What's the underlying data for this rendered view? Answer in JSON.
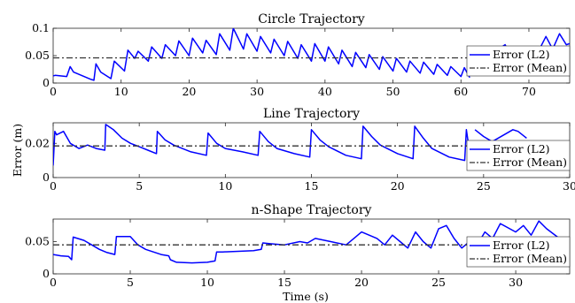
{
  "figure": {
    "ylabel": "Error (m)",
    "xlabel": "Time (s)"
  },
  "chart_data": [
    {
      "type": "line",
      "title": "Circle Trajectory",
      "xlim": [
        0,
        76
      ],
      "ylim": [
        0,
        0.1
      ],
      "xticks": [
        "0",
        "10",
        "20",
        "30",
        "40",
        "50",
        "60",
        "70"
      ],
      "yticks": [
        "0",
        "0.05",
        "0.1"
      ],
      "legend": {
        "position": "right",
        "entries": [
          "Error (L2)",
          "Error (Mean)"
        ]
      },
      "mean": 0.046,
      "series": [
        {
          "name": "Error (L2)",
          "color": "#0000ff",
          "x": [
            0,
            0.3,
            2,
            2.5,
            3,
            5.5,
            6,
            6.3,
            7,
            8.5,
            9,
            10.5,
            11,
            12,
            12.5,
            14,
            14.5,
            16,
            16.5,
            18,
            18.5,
            20,
            20.5,
            22,
            22.5,
            24,
            24.5,
            26,
            26.5,
            28,
            28.5,
            30,
            30.5,
            32,
            32.5,
            34,
            34.5,
            36,
            36.5,
            38,
            38.5,
            40,
            40.5,
            42,
            42.5,
            44,
            44.5,
            46,
            46.5,
            48,
            48.5,
            50,
            50.5,
            52,
            52.5,
            54,
            54.5,
            56,
            56.5,
            58,
            58.5,
            60,
            60.5,
            61.3
          ],
          "y": [
            0.013,
            0.014,
            0.012,
            0.03,
            0.02,
            0.007,
            0.005,
            0.035,
            0.02,
            0.008,
            0.04,
            0.022,
            0.06,
            0.045,
            0.058,
            0.04,
            0.066,
            0.045,
            0.07,
            0.05,
            0.077,
            0.05,
            0.082,
            0.055,
            0.078,
            0.052,
            0.09,
            0.06,
            0.1,
            0.062,
            0.09,
            0.058,
            0.085,
            0.055,
            0.08,
            0.05,
            0.076,
            0.045,
            0.07,
            0.04,
            0.072,
            0.04,
            0.066,
            0.035,
            0.06,
            0.03,
            0.056,
            0.028,
            0.052,
            0.025,
            0.048,
            0.022,
            0.045,
            0.02,
            0.04,
            0.018,
            0.038,
            0.016,
            0.034,
            0.014,
            0.03,
            0.012,
            0.028,
            0.01
          ]
        },
        {
          "name": "Error (L2)",
          "color": "#0000ff",
          "x": [
            66,
            66.5,
            67,
            69,
            71,
            72.5,
            73.5,
            74.5,
            75.5,
            76
          ],
          "y": [
            0.066,
            0.07,
            0.058,
            0.05,
            0.048,
            0.085,
            0.062,
            0.09,
            0.07,
            0.072
          ]
        },
        {
          "name": "Error (Mean)",
          "dash": true,
          "color": "#333333",
          "x": [
            0,
            76
          ],
          "y": [
            0.046,
            0.046
          ]
        }
      ]
    },
    {
      "type": "line",
      "title": "Line Trajectory",
      "xlim": [
        0,
        30
      ],
      "ylim": [
        0,
        0.032
      ],
      "xticks": [
        "0",
        "5",
        "10",
        "15",
        "20",
        "25",
        "30"
      ],
      "yticks": [
        "0",
        "0.02"
      ],
      "legend": {
        "position": "right",
        "entries": [
          "Error (L2)",
          "Error (Mean)"
        ]
      },
      "mean": 0.0185,
      "series": [
        {
          "name": "Error (L2)",
          "color": "#0000ff",
          "x": [
            0,
            0.1,
            0.2,
            0.6,
            1,
            1.5,
            2,
            2.5,
            3,
            3.05,
            3.5,
            4,
            4.5,
            5,
            5.5,
            6,
            6.05,
            6.5,
            7,
            8,
            8.9,
            9,
            9.5,
            10,
            11,
            11.9,
            12,
            12.5,
            13,
            14,
            14.9,
            15,
            15.5,
            16,
            17,
            17.9,
            18,
            18.5,
            19,
            20,
            20.9,
            21,
            21.5,
            22,
            23,
            23.9,
            24,
            24.2
          ],
          "y": [
            0.007,
            0.027,
            0.025,
            0.027,
            0.02,
            0.017,
            0.019,
            0.017,
            0.016,
            0.031,
            0.028,
            0.023,
            0.02,
            0.018,
            0.016,
            0.014,
            0.027,
            0.022,
            0.019,
            0.015,
            0.013,
            0.026,
            0.02,
            0.017,
            0.015,
            0.013,
            0.027,
            0.021,
            0.017,
            0.014,
            0.012,
            0.028,
            0.022,
            0.018,
            0.013,
            0.011,
            0.03,
            0.024,
            0.019,
            0.014,
            0.011,
            0.03,
            0.023,
            0.017,
            0.012,
            0.01,
            0.028,
            0.014
          ]
        },
        {
          "name": "Error (L2)",
          "color": "#0000ff",
          "x": [
            24.5,
            25,
            25.5,
            26.7,
            27,
            27.5
          ],
          "y": [
            0.028,
            0.024,
            0.021,
            0.028,
            0.027,
            0.023
          ]
        },
        {
          "name": "Error (L2)",
          "color": "#0000ff",
          "x": [
            29.9,
            30
          ],
          "y": [
            0.012,
            0.02
          ]
        },
        {
          "name": "Error (Mean)",
          "dash": true,
          "color": "#333333",
          "x": [
            0,
            30
          ],
          "y": [
            0.0185,
            0.0185
          ]
        }
      ]
    },
    {
      "type": "line",
      "title": "n-Shape Trajectory",
      "xlim": [
        0,
        33.5
      ],
      "ylim": [
        0,
        0.085
      ],
      "xticks": [
        "0",
        "5",
        "10",
        "15",
        "20",
        "25",
        "30"
      ],
      "yticks": [
        "0",
        "0.05"
      ],
      "legend": {
        "position": "right",
        "entries": [
          "Error (L2)",
          "Error (Mean)"
        ]
      },
      "mean": 0.045,
      "series": [
        {
          "name": "Error (L2)",
          "color": "#0000ff",
          "x": [
            0,
            0.5,
            1,
            1.2,
            1.3,
            2,
            2.5,
            3,
            3.5,
            4,
            4.1,
            5,
            5.5,
            6,
            7,
            7.5,
            7.6,
            8,
            9,
            10,
            10.5,
            10.6,
            11,
            12,
            13,
            13.5,
            13.6,
            14,
            15,
            16,
            16.5,
            17,
            18,
            19,
            19.5,
            20,
            21,
            21.5,
            22,
            22.5,
            23,
            23.5,
            24,
            24.5,
            25,
            25.5,
            26,
            26.5,
            27
          ],
          "y": [
            0.03,
            0.028,
            0.027,
            0.022,
            0.057,
            0.052,
            0.045,
            0.038,
            0.033,
            0.03,
            0.058,
            0.058,
            0.045,
            0.038,
            0.03,
            0.028,
            0.022,
            0.018,
            0.017,
            0.018,
            0.02,
            0.034,
            0.034,
            0.035,
            0.036,
            0.038,
            0.048,
            0.047,
            0.045,
            0.05,
            0.048,
            0.055,
            0.05,
            0.045,
            0.055,
            0.065,
            0.055,
            0.045,
            0.06,
            0.05,
            0.04,
            0.065,
            0.05,
            0.04,
            0.07,
            0.075,
            0.055,
            0.04,
            0.05
          ]
        },
        {
          "name": "Error (L2)",
          "color": "#0000ff",
          "x": [
            27.5,
            28,
            28.5,
            29,
            30,
            30.5,
            31,
            31.5,
            32,
            33,
            33.5
          ],
          "y": [
            0.045,
            0.065,
            0.055,
            0.078,
            0.065,
            0.075,
            0.06,
            0.082,
            0.07,
            0.052,
            0.052
          ]
        },
        {
          "name": "Error (Mean)",
          "dash": true,
          "color": "#333333",
          "x": [
            0,
            33.5
          ],
          "y": [
            0.045,
            0.045
          ]
        }
      ]
    }
  ]
}
